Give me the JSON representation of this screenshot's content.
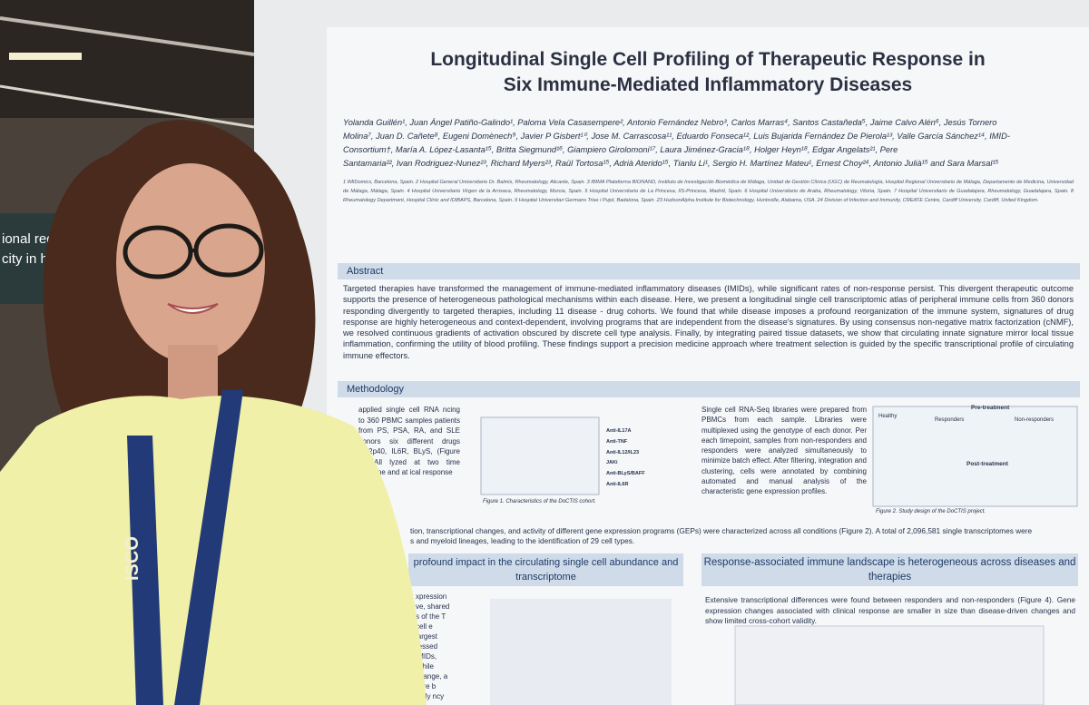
{
  "background_sign": [
    "ional regulat",
    "city in hem"
  ],
  "poster": {
    "title": [
      "Longitudinal Single Cell Profiling of Therapeutic Response in",
      "Six Immune-Mediated Inflammatory Diseases"
    ],
    "authors": [
      "Yolanda Guillén¹, Juan Ángel Patiño-Galindo¹, Paloma Vela Casasempere², Antonio Fernández Nebro³, Carlos Marras⁴, Santos Castañeda⁵, Jaime Calvo Alén⁶, Jesús Tornero",
      "Molina⁷, Juan D. Cañete⁸, Eugeni Domènech⁹, Javier P Gisbert¹⁰, Jose M. Carrascosa¹¹, Eduardo Fonseca¹², Luis Bujarida Fernández De Pierola¹³, Valle García Sánchez¹⁴, IMID-",
      "Consortium†, María A. López-Lasanta¹⁵, Britta Siegmund¹⁶, Giampiero Girolomoni¹⁷, Laura Jiménez-Gracia¹⁸, Holger Heyn¹⁸, Edgar Angelats²¹, Pere",
      "Santamaria²², Ivan Rodriguez-Nunez²³, Richard Myers²³, Raül Tortosa¹⁵, Adrià Aterido¹⁵, Tianlu Li¹, Sergio H. Martínez Mateu¹, Ernest Choy²⁴, Antonio Julià¹⁵ and Sara Marsal¹⁵"
    ],
    "affiliations": "1 IMIDomics, Barcelona, Spain. 2 Hospital General Universitario Dr. Balmis, Rheumatology, Alicante, Spain. 3 IBIMA Plataforma BIONAND, Instituto de Investigación Biomédica de Málaga, Unidad de Gestión Clínica (UGC) de Reumatología, Hospital Regional Universitario de Málaga, Departamento de Medicina, Universidad de Málaga, Málaga, Spain. 4 Hospital Universitario Virgen de la Arrixaca, Rheumatology, Murcia, Spain. 5 Hospital Universitario de La Princesa, IIS-Princesa, Madrid, Spain. 6 Hospital Universitario de Araba, Rheumatology, Vitoria, Spain. 7 Hospital Universitario de Guadalajara, Rheumatology, Guadalajara, Spain. 8 Rheumatology Department, Hospital Clínic and IDIBAPS, Barcelona, Spain. 9 Hospital Universitari Germans Trias i Pujol, Badalona, Spain. 23 HudsonAlpha Institute for Biotechnology, Huntsville, Alabama, USA. 24 Division of Infection and Immunity, CREATE Centre, Cardiff University, Cardiff, United Kingdom.",
    "abstract_heading": "Abstract",
    "abstract": "Targeted therapies have transformed the management of immune-mediated inflammatory diseases (IMIDs), while significant rates of non-response persist. This divergent therapeutic outcome supports the presence of heterogeneous pathological mechanisms within each disease. Here, we present a longitudinal single cell transcriptomic atlas of peripheral immune cells from 360 donors responding divergently to targeted therapies, including 11 disease - drug cohorts. We found that while disease imposes a profound reorganization of the immune system, signatures of drug response are highly heterogeneous and context-dependent, involving programs that are independent from the disease's signatures. By using consensus non-negative matrix factorization (cNMF), we resolved continuous gradients of activation obscured by discrete cell type analysis. Finally, by integrating paired tissue datasets, we show that circulating innate signature mirror local tissue inflammation, confirming the utility of blood profiling. These findings support a precision medicine approach where treatment selection is guided by the specific transcriptional profile of circulating immune effectors.",
    "methodology_heading": "Methodology",
    "method_left": "applied single cell RNA ncing to 360 PBMC samples patients from PS, PSA, RA, and SLE donors six different drugs IL12p40, IL6R, BLyS, (Figure 1). All lyzed at two time baseline and at ical response",
    "figure1_rows": [
      "Anti-IL17A",
      "Anti-TNF",
      "Anti-IL12/IL23",
      "JAKi",
      "Anti-BLyS/BAFF",
      "Anti-IL6R"
    ],
    "figure1_caption": "Figure 1. Characteristics of the DoCTIS cohort.",
    "method_right": "Single cell RNA-Seq libraries were prepared from PBMCs from each sample. Libraries were multiplexed using the genotype of each donor. Per each timepoint, samples from non-responders and responders were analyzed simultaneously to minimize batch effect. After filtering, integration and clustering, cells were annotated by combining automated and manual analysis of the characteristic gene expression profiles.",
    "figure2_labels": [
      "Healthy",
      "Pre-treatment",
      "Responders",
      "Non-responders",
      "Post-treatment"
    ],
    "figure2_caption": "Figure 2. Study design of the DoCTIS project.",
    "results_line1": "tion, transcriptional changes, and activity of different gene expression programs (GEPs) were characterized across all conditions (Figure 2). A total of 2,096,581 single transcriptomes were",
    "results_line2": "s and myeloid lineages, leading to the identification of 29 cell types.",
    "section_left": "profound impact in the circulating single cell abundance and transcriptome",
    "section_right": "Response-associated immune landscape is heterogeneous across diseases and therapies",
    "right_text": "Extensive transcriptional differences were found between responders and non-responders (Figure 4). Gene expression changes associated with clinical response are smaller in size than disease-driven changes and show limited cross-cohort validity.",
    "left_text": "xpression ve, shared s of the T cell e largest ressed IMIDs, While change, a core b jonly ncy"
  },
  "lanyard": "ISCO"
}
